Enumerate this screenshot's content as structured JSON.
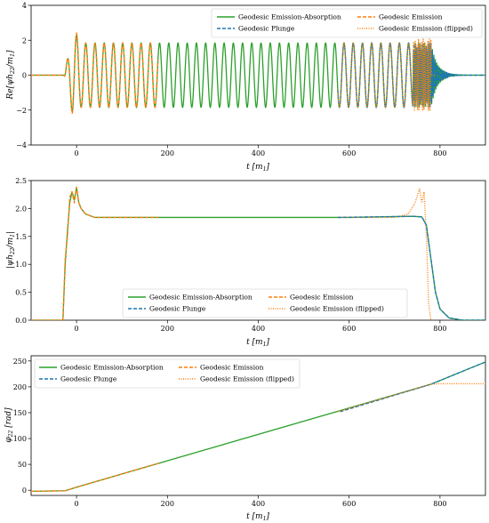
{
  "colors": {
    "absorption": "#2ca02c",
    "plunge": "#1f77b4",
    "emission": "#ff7f0e",
    "emission_flipped": "#ff7f0e"
  },
  "chart_data": [
    {
      "type": "line",
      "panel": "top",
      "xlabel": "t [m1]",
      "ylabel": "Re[ψh22/m1]",
      "xlim": [
        -100,
        900
      ],
      "ylim": [
        -4,
        4
      ],
      "xticks": [
        "0",
        "200",
        "400",
        "600",
        "800"
      ],
      "yticks": [
        "−4",
        "−2",
        "0",
        "2",
        "4"
      ],
      "legend": {
        "location": "top-right",
        "columns": 2,
        "entries": [
          "Geodesic Emission-Absorption",
          "Geodesic Emission",
          "Geodesic Plunge",
          "Geodesic Emission (flipped)"
        ]
      },
      "series": [
        {
          "name": "Geodesic Emission-Absorption",
          "style": "solid",
          "description": "oscillation amplitude ~1.85, period ~20, from t≈-25 to t≈780, then ringdown"
        },
        {
          "name": "Geodesic Plunge",
          "style": "dashed",
          "description": "overlaps from t≈580 to 800 with ringdown to 0"
        },
        {
          "name": "Geodesic Emission",
          "style": "dashed",
          "description": "t from -100 to ≈180, oscillation with start peak ≈2.4"
        },
        {
          "name": "Geodesic Emission (flipped)",
          "style": "dotted",
          "description": "t ≈575 to 780 oscillation with peaks ≈2.1"
        }
      ]
    },
    {
      "type": "line",
      "panel": "middle",
      "xlabel": "t [m1]",
      "ylabel": "|ψh22/m1|",
      "xlim": [
        -100,
        900
      ],
      "ylim": [
        0,
        2.5
      ],
      "xticks": [
        "0",
        "200",
        "400",
        "600",
        "800"
      ],
      "yticks": [
        "0.0",
        "0.5",
        "1.0",
        "1.5",
        "2.0",
        "2.5"
      ],
      "legend": {
        "location": "lower-center",
        "columns": 2,
        "entries": [
          "Geodesic Emission-Absorption",
          "Geodesic Emission",
          "Geodesic Plunge",
          "Geodesic Emission (flipped)"
        ]
      },
      "series": [
        {
          "name": "Geodesic Emission-Absorption",
          "x": [
            -100,
            -30,
            -25,
            -20,
            -15,
            -10,
            -5,
            0,
            5,
            10,
            20,
            40,
            200,
            400,
            600,
            740,
            760,
            770,
            780,
            790,
            800,
            820,
            850,
            900
          ],
          "y": [
            0,
            0,
            1.0,
            1.6,
            2.1,
            2.3,
            2.15,
            2.38,
            2.1,
            2.0,
            1.9,
            1.84,
            1.84,
            1.84,
            1.84,
            1.86,
            1.85,
            1.7,
            1.1,
            0.5,
            0.2,
            0.04,
            0.0,
            0.0
          ]
        },
        {
          "name": "Geodesic Emission",
          "x": [
            -100,
            -30,
            -25,
            -20,
            -15,
            -10,
            -5,
            0,
            5,
            10,
            20,
            40,
            180
          ],
          "y": [
            0,
            0,
            1.1,
            1.5,
            2.2,
            2.3,
            2.1,
            2.38,
            2.1,
            2.0,
            1.9,
            1.84,
            1.84
          ]
        },
        {
          "name": "Geodesic Emission (flipped)",
          "x": [
            575,
            700,
            730,
            745,
            755,
            760,
            765,
            770,
            775,
            780,
            785
          ],
          "y": [
            1.84,
            1.84,
            1.9,
            2.1,
            2.35,
            2.1,
            2.3,
            1.5,
            0.3,
            0.0,
            0.0
          ]
        }
      ]
    },
    {
      "type": "line",
      "panel": "bottom",
      "xlabel": "t [m1]",
      "ylabel": "φ22 [rad]",
      "xlim": [
        -100,
        900
      ],
      "ylim": [
        -10,
        260
      ],
      "xticks": [
        "0",
        "200",
        "400",
        "600",
        "800"
      ],
      "yticks": [
        "0",
        "50",
        "100",
        "150",
        "200",
        "250"
      ],
      "legend": {
        "location": "top-left",
        "columns": 2,
        "entries": [
          "Geodesic Emission-Absorption",
          "Geodesic Emission",
          "Geodesic Plunge",
          "Geodesic Emission (flipped)"
        ]
      },
      "series": [
        {
          "name": "Geodesic Emission-Absorption",
          "x": [
            -100,
            -25,
            0,
            780,
            900
          ],
          "y": [
            -2,
            -1,
            6,
            205,
            248
          ]
        },
        {
          "name": "Geodesic Plunge",
          "x": [
            580,
            780,
            900
          ],
          "y": [
            152,
            205,
            248
          ]
        },
        {
          "name": "Geodesic Emission",
          "x": [
            -100,
            -25,
            0,
            180
          ],
          "y": [
            -2,
            -1,
            6,
            52
          ]
        },
        {
          "name": "Geodesic Emission (flipped)",
          "x": [
            575,
            760,
            780,
            800,
            900
          ],
          "y": [
            152,
            200,
            205,
            206,
            206
          ]
        }
      ]
    }
  ]
}
